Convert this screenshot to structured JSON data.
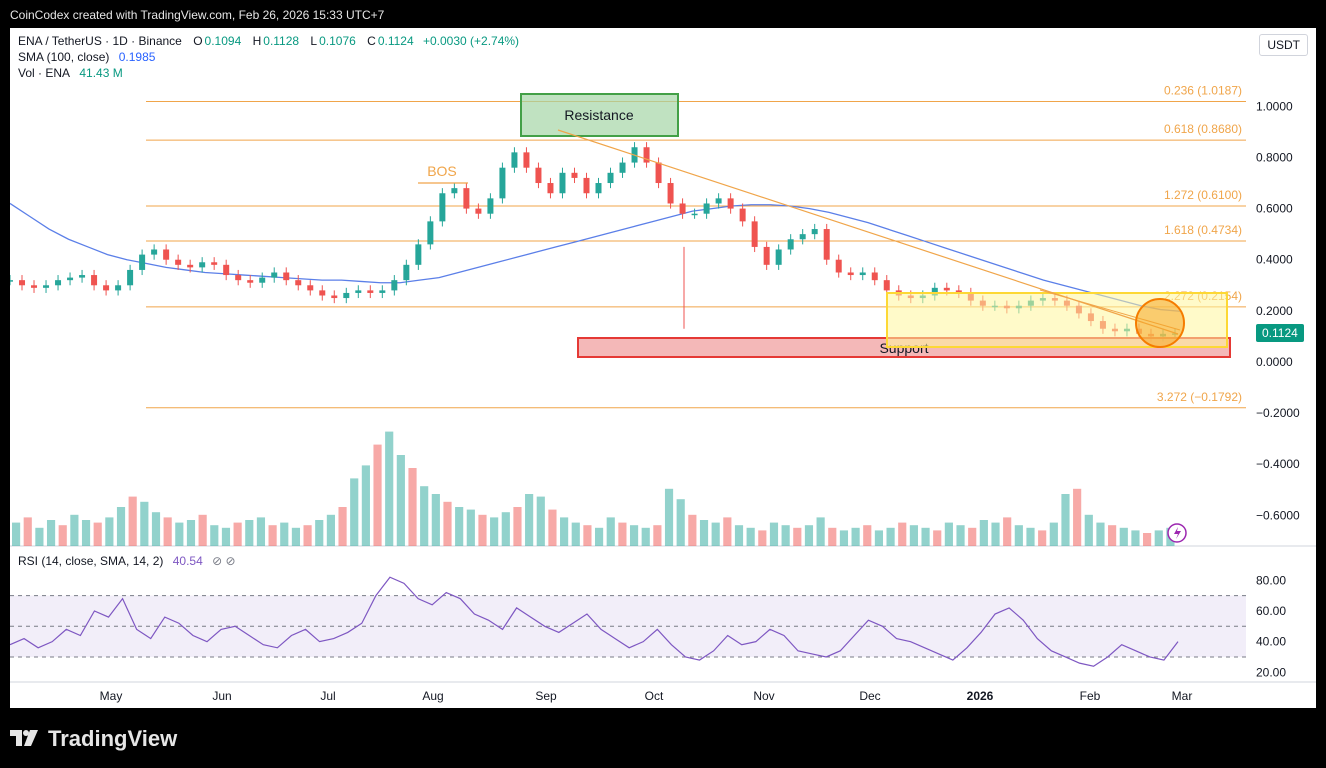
{
  "caption": "CoinCodex created with TradingView.com, Feb 26, 2026 15:33 UTC+7",
  "legend": {
    "symbol": "ENA / TetherUS · 1D · Binance",
    "o_label": "O",
    "o": "0.1094",
    "h_label": "H",
    "h": "0.1128",
    "l_label": "L",
    "l": "0.1076",
    "c_label": "C",
    "c": "0.1124",
    "change": "+0.0030 (+2.74%)",
    "sma_label": "SMA (100, close)",
    "sma_value": "0.1985",
    "vol_label": "Vol · ENA",
    "vol_value": "41.43 M"
  },
  "currency_button": "USDT",
  "last_price": "0.1124",
  "rsi_legend": {
    "label": "RSI (14, close, SMA, 14, 2)",
    "value": "40.54",
    "icons": "⊘ ⊘"
  },
  "footer_brand": "TradingView",
  "colors": {
    "up": "#26a69a",
    "down": "#ef5350",
    "sma": "#5b7fe8",
    "fib": "#f0a54a",
    "rsi": "#7e57c2"
  },
  "chart_data": {
    "type": "line",
    "price_axis": {
      "ticks": [
        "1.0000",
        "0.8000",
        "0.6000",
        "0.4000",
        "0.2000",
        "0.0000",
        "−0.2000",
        "−0.4000",
        "−0.6000"
      ],
      "range": [
        -0.72,
        1.15
      ]
    },
    "x_axis": {
      "labels": [
        "May",
        "Jun",
        "Jul",
        "Aug",
        "Sep",
        "Oct",
        "Nov",
        "Dec",
        "2026",
        "Feb",
        "Mar"
      ]
    },
    "fib_levels": [
      {
        "label": "0.236 (1.0187)",
        "value": 1.0187
      },
      {
        "label": "0.618 (0.8680)",
        "value": 0.868
      },
      {
        "label": "1.272 (0.6100)",
        "value": 0.61
      },
      {
        "label": "1.618 (0.4734)",
        "value": 0.4734
      },
      {
        "label": "2.272 (0.2154)",
        "value": 0.2154
      },
      {
        "label": "3.272 (−0.1792)",
        "value": -0.1792
      }
    ],
    "annotations": {
      "resistance": "Resistance",
      "support": "Support",
      "bos": "BOS"
    },
    "price_series": {
      "name": "ENA / TetherUS",
      "values": [
        0.32,
        0.3,
        0.29,
        0.3,
        0.32,
        0.33,
        0.34,
        0.3,
        0.28,
        0.3,
        0.36,
        0.42,
        0.44,
        0.4,
        0.38,
        0.37,
        0.39,
        0.38,
        0.34,
        0.32,
        0.31,
        0.33,
        0.35,
        0.32,
        0.3,
        0.28,
        0.26,
        0.25,
        0.27,
        0.28,
        0.27,
        0.28,
        0.32,
        0.38,
        0.46,
        0.55,
        0.66,
        0.68,
        0.6,
        0.58,
        0.64,
        0.76,
        0.82,
        0.76,
        0.7,
        0.66,
        0.74,
        0.72,
        0.66,
        0.7,
        0.74,
        0.78,
        0.84,
        0.78,
        0.7,
        0.62,
        0.58,
        0.58,
        0.62,
        0.64,
        0.6,
        0.55,
        0.45,
        0.38,
        0.44,
        0.48,
        0.5,
        0.52,
        0.4,
        0.35,
        0.34,
        0.35,
        0.32,
        0.28,
        0.26,
        0.25,
        0.26,
        0.29,
        0.28,
        0.27,
        0.24,
        0.22,
        0.22,
        0.21,
        0.22,
        0.24,
        0.25,
        0.24,
        0.22,
        0.19,
        0.16,
        0.13,
        0.12,
        0.13,
        0.11,
        0.1,
        0.11,
        0.112
      ]
    },
    "sma_series": {
      "name": "SMA (100, close)",
      "values": [
        0.62,
        0.57,
        0.52,
        0.48,
        0.45,
        0.42,
        0.4,
        0.385,
        0.37,
        0.36,
        0.35,
        0.345,
        0.34,
        0.335,
        0.33,
        0.325,
        0.32,
        0.32,
        0.315,
        0.31,
        0.31,
        0.32,
        0.33,
        0.35,
        0.37,
        0.39,
        0.41,
        0.43,
        0.45,
        0.47,
        0.49,
        0.51,
        0.53,
        0.55,
        0.57,
        0.59,
        0.6,
        0.61,
        0.615,
        0.615,
        0.61,
        0.6,
        0.585,
        0.565,
        0.545,
        0.52,
        0.495,
        0.47,
        0.445,
        0.42,
        0.395,
        0.37,
        0.345,
        0.32,
        0.3,
        0.28,
        0.26,
        0.24,
        0.22,
        0.205,
        0.1985
      ]
    },
    "rsi_axis": {
      "ticks": [
        "80.00",
        "60.00",
        "40.00",
        "20.00"
      ],
      "range": [
        15,
        88
      ]
    },
    "rsi_series": {
      "name": "RSI (14, close, SMA, 14, 2)",
      "values": [
        38,
        42,
        36,
        40,
        48,
        44,
        60,
        56,
        68,
        48,
        42,
        56,
        52,
        44,
        40,
        48,
        50,
        44,
        38,
        36,
        44,
        48,
        40,
        42,
        46,
        52,
        70,
        82,
        78,
        68,
        64,
        72,
        68,
        58,
        54,
        48,
        62,
        56,
        50,
        46,
        52,
        58,
        48,
        42,
        36,
        40,
        48,
        38,
        30,
        28,
        34,
        44,
        38,
        40,
        48,
        44,
        34,
        32,
        30,
        34,
        44,
        54,
        50,
        42,
        40,
        36,
        32,
        28,
        36,
        46,
        58,
        62,
        54,
        42,
        34,
        30,
        26,
        24,
        30,
        38,
        34,
        30,
        28,
        40
      ]
    },
    "volume_series": {
      "name": "Vol · ENA",
      "values": [
        18,
        22,
        14,
        20,
        16,
        24,
        20,
        18,
        22,
        30,
        38,
        34,
        26,
        22,
        18,
        20,
        24,
        16,
        14,
        18,
        20,
        22,
        16,
        18,
        14,
        16,
        20,
        24,
        30,
        52,
        62,
        78,
        88,
        70,
        60,
        46,
        40,
        34,
        30,
        28,
        24,
        22,
        26,
        30,
        40,
        38,
        28,
        22,
        18,
        16,
        14,
        22,
        18,
        16,
        14,
        16,
        44,
        36,
        24,
        20,
        18,
        22,
        16,
        14,
        12,
        18,
        16,
        14,
        16,
        22,
        14,
        12,
        14,
        16,
        12,
        14,
        18,
        16,
        14,
        12,
        18,
        16,
        14,
        20,
        18,
        22,
        16,
        14,
        12,
        18,
        40,
        44,
        24,
        18,
        16,
        14,
        12,
        10,
        12,
        14
      ]
    }
  }
}
